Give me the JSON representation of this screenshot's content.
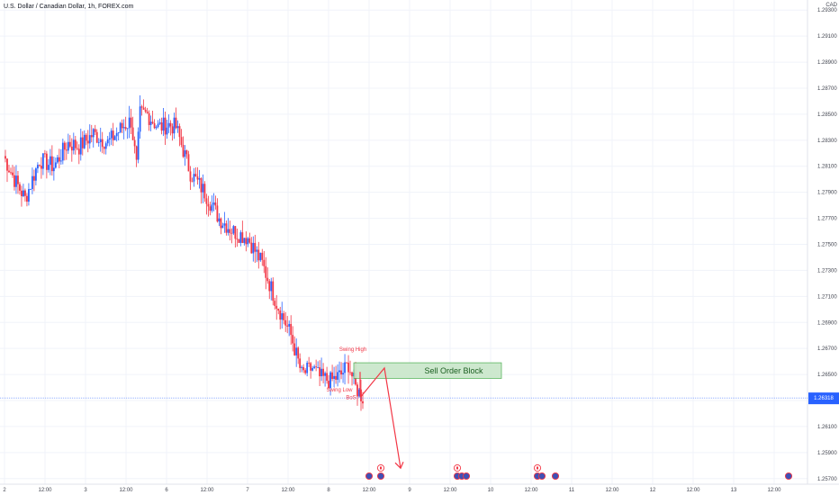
{
  "header": {
    "symbol_title": "U.S. Dollar / Canadian Dollar, 1h, FOREX.com",
    "currency": "CAD"
  },
  "price_line": {
    "value": 1.2632,
    "color": "#2962ff",
    "badge_bg": "#2962ff"
  },
  "colors": {
    "up": "#2962ff",
    "down": "#f23645",
    "annotation": "#f23645",
    "block_fill": "#c8e6c9",
    "block_border": "#4caf50",
    "grid": "#f0f3fa"
  },
  "annotations": {
    "swing_high": "Swing High",
    "swing_low": "Swing Low",
    "bos": "BoS",
    "sell_order_block": "Sell Order Block"
  },
  "event_markers": [
    {
      "x": "Jul 8 12:00",
      "icons": [
        "us-flag-icon"
      ]
    },
    {
      "x": "Jul 8 13:00",
      "icons": [
        "ca-flag-icon",
        "us-flag-icon"
      ]
    },
    {
      "x": "Jul 9 12:00",
      "icons": [
        "ca-flag-icon",
        "us-flag-icon",
        "us-flag-icon",
        "us-flag-icon"
      ]
    },
    {
      "x": "Jul 10 12:00",
      "icons": [
        "ca-flag-icon",
        "us-flag-icon",
        "us-flag-icon"
      ]
    },
    {
      "x": "Jul 10 18:00",
      "icons": [
        "us-flag-icon"
      ]
    },
    {
      "x": "Jul 13 18:00",
      "icons": [
        "us-flag-icon"
      ]
    }
  ],
  "chart_data": {
    "type": "candlestick",
    "title": "U.S. Dollar / Canadian Dollar, 1h, FOREX.com",
    "ylim": [
      1.2565,
      1.2935
    ],
    "y_ticks": [
      1.293,
      1.291,
      1.289,
      1.287,
      1.285,
      1.283,
      1.281,
      1.279,
      1.277,
      1.275,
      1.273,
      1.271,
      1.269,
      1.267,
      1.265,
      1.263,
      1.261,
      1.259,
      1.257
    ],
    "y_tick_labels": [
      "1.29300",
      "1.29100",
      "1.28900",
      "1.28700",
      "1.28500",
      "1.28300",
      "1.28100",
      "1.27900",
      "1.27700",
      "1.27500",
      "1.27300",
      "1.27100",
      "1.26900",
      "1.26700",
      "1.26500",
      "1.26300",
      "1.26100",
      "1.25900",
      "1.25700"
    ],
    "x_tick_labels": [
      "2",
      "12:00",
      "3",
      "12:00",
      "6",
      "12:00",
      "7",
      "12:00",
      "8",
      "12:00",
      "9",
      "12:00",
      "10",
      "12:00",
      "11",
      "12:00",
      "12",
      "12:00",
      "13",
      "12:00"
    ],
    "price_label": "1.26318",
    "candle_anchor_points": [
      {
        "i": 0,
        "close": 1.2818
      },
      {
        "i": 6,
        "close": 1.28
      },
      {
        "i": 12,
        "close": 1.2785
      },
      {
        "i": 20,
        "close": 1.2815
      },
      {
        "i": 28,
        "close": 1.281
      },
      {
        "i": 36,
        "close": 1.2828
      },
      {
        "i": 42,
        "close": 1.2825
      },
      {
        "i": 50,
        "close": 1.2835
      },
      {
        "i": 58,
        "close": 1.2828
      },
      {
        "i": 66,
        "close": 1.284
      },
      {
        "i": 71,
        "close": 1.2845
      },
      {
        "i": 74,
        "close": 1.281
      },
      {
        "i": 76,
        "close": 1.285
      },
      {
        "i": 80,
        "close": 1.285
      },
      {
        "i": 86,
        "close": 1.284
      },
      {
        "i": 92,
        "close": 1.2842
      },
      {
        "i": 96,
        "close": 1.284
      },
      {
        "i": 104,
        "close": 1.2805
      },
      {
        "i": 112,
        "close": 1.279
      },
      {
        "i": 120,
        "close": 1.277
      },
      {
        "i": 128,
        "close": 1.276
      },
      {
        "i": 136,
        "close": 1.2755
      },
      {
        "i": 144,
        "close": 1.2735
      },
      {
        "i": 152,
        "close": 1.2705
      },
      {
        "i": 160,
        "close": 1.268
      },
      {
        "i": 166,
        "close": 1.265
      },
      {
        "i": 172,
        "close": 1.2655
      },
      {
        "i": 176,
        "close": 1.2648
      },
      {
        "i": 182,
        "close": 1.2645
      },
      {
        "i": 188,
        "close": 1.265
      },
      {
        "i": 192,
        "close": 1.2658
      },
      {
        "i": 196,
        "close": 1.264
      },
      {
        "i": 200,
        "close": 1.2632
      }
    ],
    "zones": [
      {
        "label": "Sell Order Block",
        "x_start": "Jul 8 18:00",
        "x_end": "Jul 9 17:00",
        "y_low": 1.2647,
        "y_high": 1.2659
      }
    ],
    "projection": {
      "from": 1.2633,
      "peak": 1.2655,
      "target": 1.2578
    }
  }
}
